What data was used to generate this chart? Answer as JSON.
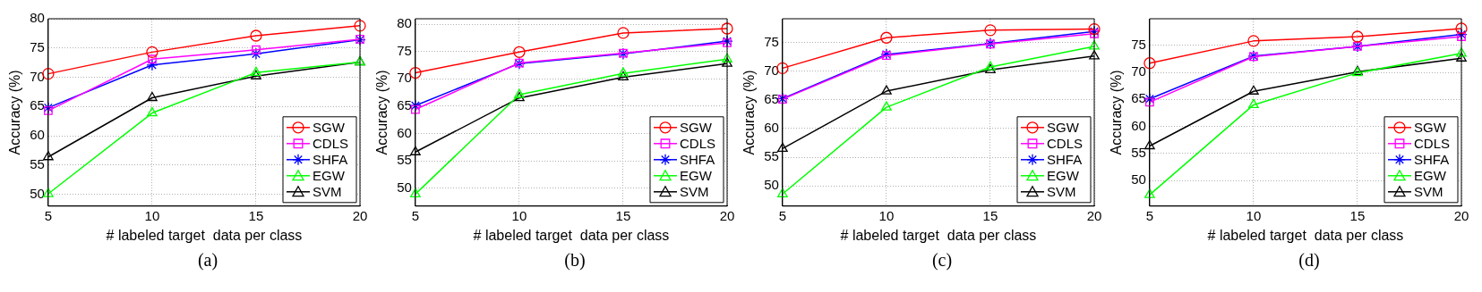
{
  "chart_data": [
    {
      "type": "line",
      "xlabel": "# labeled target  data per class",
      "ylabel": "Accuracy (%)",
      "annotations": [
        "(a)"
      ],
      "x": [
        5,
        10,
        15,
        20
      ],
      "xlim": [
        5,
        20
      ],
      "xticks": [
        5,
        10,
        15,
        20
      ],
      "ylim": [
        48,
        80
      ],
      "yticks": [
        50,
        55,
        60,
        65,
        70,
        75,
        80
      ],
      "grid": true,
      "legend": "bottom right",
      "series": [
        {
          "name": "SGW",
          "color": "#ff0000",
          "marker": "circle",
          "values": [
            70.6,
            74.3,
            77.1,
            78.8
          ]
        },
        {
          "name": "CDLS",
          "color": "#ff00ff",
          "marker": "square",
          "values": [
            64.3,
            73.1,
            74.7,
            76.5
          ]
        },
        {
          "name": "SHFA",
          "color": "#0000ff",
          "marker": "cross",
          "values": [
            64.8,
            72.1,
            74.0,
            76.4
          ]
        },
        {
          "name": "EGW",
          "color": "#00ff00",
          "marker": "triangle",
          "values": [
            50.1,
            63.9,
            70.8,
            72.6
          ]
        },
        {
          "name": "SVM",
          "color": "#000000",
          "marker": "triangle",
          "values": [
            56.4,
            66.5,
            70.2,
            72.6
          ]
        }
      ]
    },
    {
      "type": "line",
      "xlabel": "# labeled target  data per class",
      "ylabel": "Accuracy (%)",
      "annotations": [
        "(b)"
      ],
      "x": [
        5,
        10,
        15,
        20
      ],
      "xlim": [
        5,
        20
      ],
      "xticks": [
        5,
        10,
        15,
        20
      ],
      "ylim": [
        46.7,
        81
      ],
      "yticks": [
        50,
        55,
        60,
        65,
        70,
        75,
        80
      ],
      "grid": true,
      "legend": "bottom right",
      "series": [
        {
          "name": "SGW",
          "color": "#ff0000",
          "marker": "circle",
          "values": [
            71.1,
            74.9,
            78.4,
            79.2
          ]
        },
        {
          "name": "CDLS",
          "color": "#ff00ff",
          "marker": "square",
          "values": [
            64.4,
            72.9,
            74.7,
            76.6
          ]
        },
        {
          "name": "SHFA",
          "color": "#0000ff",
          "marker": "cross",
          "values": [
            65.1,
            72.8,
            74.6,
            76.9
          ]
        },
        {
          "name": "EGW",
          "color": "#00ff00",
          "marker": "triangle",
          "values": [
            48.9,
            67.1,
            71.0,
            73.6
          ]
        },
        {
          "name": "SVM",
          "color": "#000000",
          "marker": "triangle",
          "values": [
            56.6,
            66.5,
            70.3,
            72.8
          ]
        }
      ]
    },
    {
      "type": "line",
      "xlabel": "# labeled target  data per class",
      "ylabel": "Accuracy (%)",
      "annotations": [
        "(c)"
      ],
      "x": [
        5,
        10,
        15,
        20
      ],
      "xlim": [
        5,
        20
      ],
      "xticks": [
        5,
        10,
        15,
        20
      ],
      "ylim": [
        46.5,
        79.1
      ],
      "yticks": [
        50,
        55,
        60,
        65,
        70,
        75
      ],
      "grid": true,
      "legend": "bottom right",
      "series": [
        {
          "name": "SGW",
          "color": "#ff0000",
          "marker": "circle",
          "values": [
            70.5,
            75.8,
            77.1,
            77.3
          ]
        },
        {
          "name": "CDLS",
          "color": "#ff00ff",
          "marker": "square",
          "values": [
            65.1,
            72.7,
            74.7,
            76.5
          ]
        },
        {
          "name": "SHFA",
          "color": "#0000ff",
          "marker": "cross",
          "values": [
            65.2,
            72.9,
            74.8,
            76.9
          ]
        },
        {
          "name": "EGW",
          "color": "#00ff00",
          "marker": "triangle",
          "values": [
            48.6,
            63.7,
            70.7,
            74.3
          ]
        },
        {
          "name": "SVM",
          "color": "#000000",
          "marker": "triangle",
          "values": [
            56.5,
            66.5,
            70.2,
            72.6
          ]
        }
      ]
    },
    {
      "type": "line",
      "xlabel": "# labeled target  data per class",
      "ylabel": "Accuracy (%)",
      "annotations": [
        "(d)"
      ],
      "x": [
        5,
        10,
        15,
        20
      ],
      "xlim": [
        5,
        20
      ],
      "xticks": [
        5,
        10,
        15,
        20
      ],
      "ylim": [
        45.3,
        79.9
      ],
      "yticks": [
        50,
        55,
        60,
        65,
        70,
        75
      ],
      "grid": true,
      "legend": "bottom right",
      "series": [
        {
          "name": "SGW",
          "color": "#ff0000",
          "marker": "circle",
          "values": [
            71.7,
            75.8,
            76.6,
            78.1
          ]
        },
        {
          "name": "CDLS",
          "color": "#ff00ff",
          "marker": "square",
          "values": [
            64.5,
            72.9,
            74.8,
            76.6
          ]
        },
        {
          "name": "SHFA",
          "color": "#0000ff",
          "marker": "cross",
          "values": [
            65.1,
            73.0,
            74.8,
            77.0
          ]
        },
        {
          "name": "EGW",
          "color": "#00ff00",
          "marker": "triangle",
          "values": [
            47.4,
            64.0,
            69.9,
            73.5
          ]
        },
        {
          "name": "SVM",
          "color": "#000000",
          "marker": "triangle",
          "values": [
            56.4,
            66.5,
            70.1,
            72.6
          ]
        }
      ]
    }
  ]
}
